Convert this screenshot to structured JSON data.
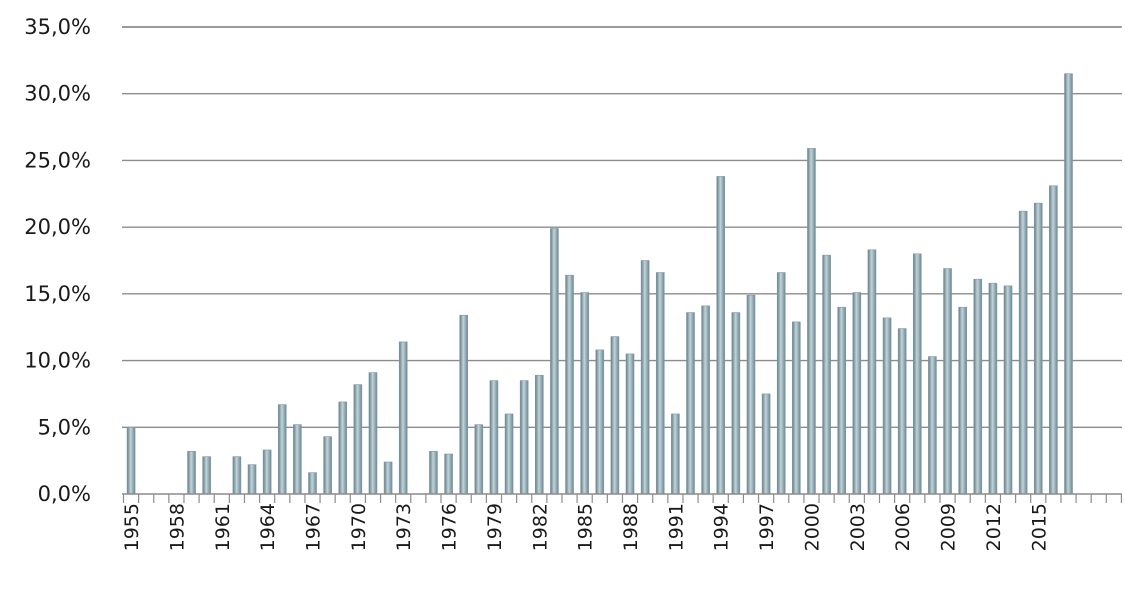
{
  "chart_data": {
    "type": "bar",
    "title": "",
    "xlabel": "",
    "ylabel": "",
    "ylim": [
      0,
      35
    ],
    "y_ticks": [
      0,
      5,
      10,
      15,
      20,
      25,
      30,
      35
    ],
    "y_tick_labels": [
      "0,0%",
      "5,0%",
      "10,0%",
      "15,0%",
      "20,0%",
      "25,0%",
      "30,0%",
      "35,0%"
    ],
    "grid": true,
    "legend": "none",
    "bar_color": "#7e9aa4",
    "categories": [
      1955,
      1956,
      1957,
      1958,
      1959,
      1960,
      1961,
      1962,
      1963,
      1964,
      1965,
      1966,
      1967,
      1968,
      1969,
      1970,
      1971,
      1972,
      1973,
      1974,
      1975,
      1976,
      1977,
      1978,
      1979,
      1980,
      1981,
      1982,
      1983,
      1984,
      1985,
      1986,
      1987,
      1988,
      1989,
      1990,
      1991,
      1992,
      1993,
      1994,
      1995,
      1996,
      1997,
      1998,
      1999,
      2000,
      2001,
      2002,
      2003,
      2004,
      2005,
      2006,
      2007,
      2008,
      2009,
      2010,
      2011,
      2012,
      2013,
      2014,
      2015,
      2016,
      2017,
      2018,
      2019,
      2020
    ],
    "x_tick_labels": [
      "1955",
      "1958",
      "1961",
      "1964",
      "1967",
      "1970",
      "1973",
      "1976",
      "1979",
      "1982",
      "1985",
      "1988",
      "1991",
      "1994",
      "1997",
      "2000",
      "2003",
      "2006",
      "2009",
      "2012",
      "2015"
    ],
    "values": [
      5.0,
      null,
      null,
      null,
      3.2,
      2.8,
      null,
      2.8,
      2.2,
      3.3,
      6.7,
      5.2,
      1.6,
      4.3,
      6.9,
      8.2,
      9.1,
      2.4,
      11.4,
      null,
      3.2,
      3.0,
      13.4,
      5.2,
      8.5,
      6.0,
      8.5,
      8.9,
      19.9,
      16.4,
      15.1,
      10.8,
      11.8,
      10.5,
      17.5,
      16.6,
      6.0,
      13.6,
      14.1,
      23.8,
      13.6,
      14.9,
      7.5,
      16.6,
      12.9,
      25.9,
      17.9,
      14.0,
      15.1,
      18.3,
      13.2,
      12.4,
      18.0,
      10.3,
      16.9,
      14.0,
      16.1,
      15.8,
      15.6,
      21.2,
      21.8,
      23.1,
      31.5,
      null,
      null,
      null
    ]
  }
}
